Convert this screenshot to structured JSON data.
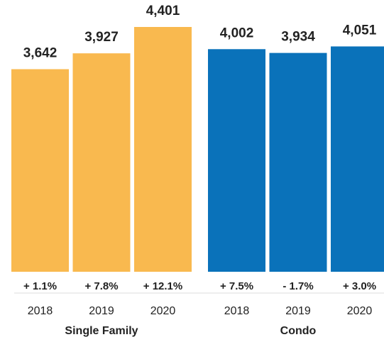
{
  "chart_data": {
    "type": "bar",
    "groups": [
      {
        "name": "Single Family",
        "color": "#f9b94f",
        "categories": [
          "2018",
          "2019",
          "2020"
        ],
        "values": [
          3642,
          3927,
          4401
        ],
        "value_labels": [
          "3,642",
          "3,927",
          "4,401"
        ],
        "changes": [
          "+ 1.1%",
          "+ 7.8%",
          "+ 12.1%"
        ]
      },
      {
        "name": "Condo",
        "color": "#0a72ba",
        "categories": [
          "2018",
          "2019",
          "2020"
        ],
        "values": [
          4002,
          3934,
          4051
        ],
        "value_labels": [
          "4,002",
          "3,934",
          "4,051"
        ],
        "changes": [
          "+ 7.5%",
          "- 1.7%",
          "+ 3.0%"
        ]
      }
    ]
  }
}
